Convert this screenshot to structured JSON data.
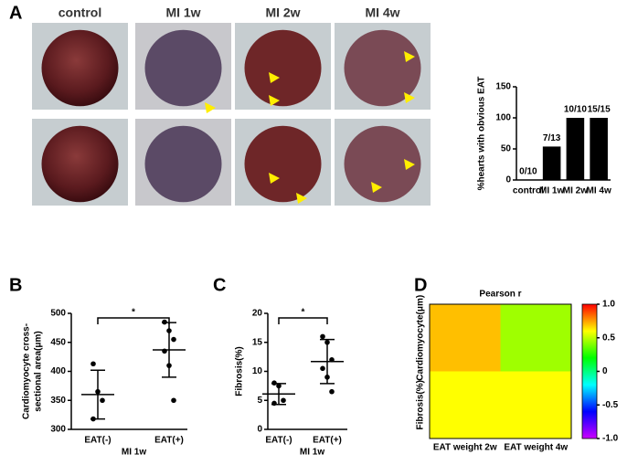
{
  "figure": {
    "panels": [
      "A",
      "B",
      "C",
      "D"
    ],
    "photo_columns": [
      "control",
      "MI 1w",
      "MI 2w",
      "MI 4w"
    ]
  },
  "chart_data": [
    {
      "type": "bar",
      "ylabel": "%hearts with obvious EAT",
      "categories": [
        "control",
        "MI 1w",
        "MI 2w",
        "MI 4w"
      ],
      "values": [
        0,
        53.8,
        100,
        100
      ],
      "value_labels": [
        "0/10",
        "7/13",
        "10/10",
        "15/15"
      ],
      "color": "#000000",
      "ylim": [
        0,
        150
      ],
      "yticks": [
        0,
        50,
        100,
        150
      ]
    },
    {
      "type": "dot",
      "ylabel": [
        "Cardiomyocyte cross-",
        "sectional area(μm)"
      ],
      "xlabel": "MI 1w",
      "categories": [
        "EAT(-)",
        "EAT(+)"
      ],
      "points": [
        [
          413,
          365,
          350,
          318
        ],
        [
          485,
          470,
          455,
          435,
          410,
          350
        ]
      ],
      "mean": [
        360,
        437
      ],
      "sd": [
        42,
        47
      ],
      "significance": "*",
      "ylim": [
        300,
        500
      ],
      "yticks": [
        300,
        350,
        400,
        450,
        500
      ]
    },
    {
      "type": "dot",
      "ylabel": [
        "Fibrosis(%)"
      ],
      "xlabel": "MI 1w",
      "categories": [
        "EAT(-)",
        "EAT(+)"
      ],
      "points": [
        [
          8,
          7.5,
          5,
          4.5
        ],
        [
          16,
          15,
          12,
          10.5,
          9,
          6.5
        ]
      ],
      "mean": [
        6.1,
        11.7
      ],
      "sd": [
        1.8,
        3.8
      ],
      "significance": "*",
      "ylim": [
        0,
        20
      ],
      "yticks": [
        0,
        5,
        10,
        15,
        20
      ]
    },
    {
      "type": "heatmap",
      "title": "Pearson r",
      "x": [
        "EAT weight 2w",
        "EAT weight 4w"
      ],
      "y": [
        "Cardiomyocyte(μm)",
        "Fibrosis(%)"
      ],
      "values": [
        [
          0.7,
          0.45
        ],
        [
          0.6,
          0.6
        ]
      ],
      "colorscale": [
        "#cc00ff",
        "#0000ff",
        "#00ffff",
        "#00ff00",
        "#ffff00",
        "#ff0000"
      ],
      "zlim": [
        -1,
        1
      ],
      "zticks": [
        {
          "value": 1,
          "label": "1.0"
        },
        0.5,
        0,
        -0.5,
        {
          "value": -1,
          "label": "-1.0"
        }
      ]
    }
  ]
}
